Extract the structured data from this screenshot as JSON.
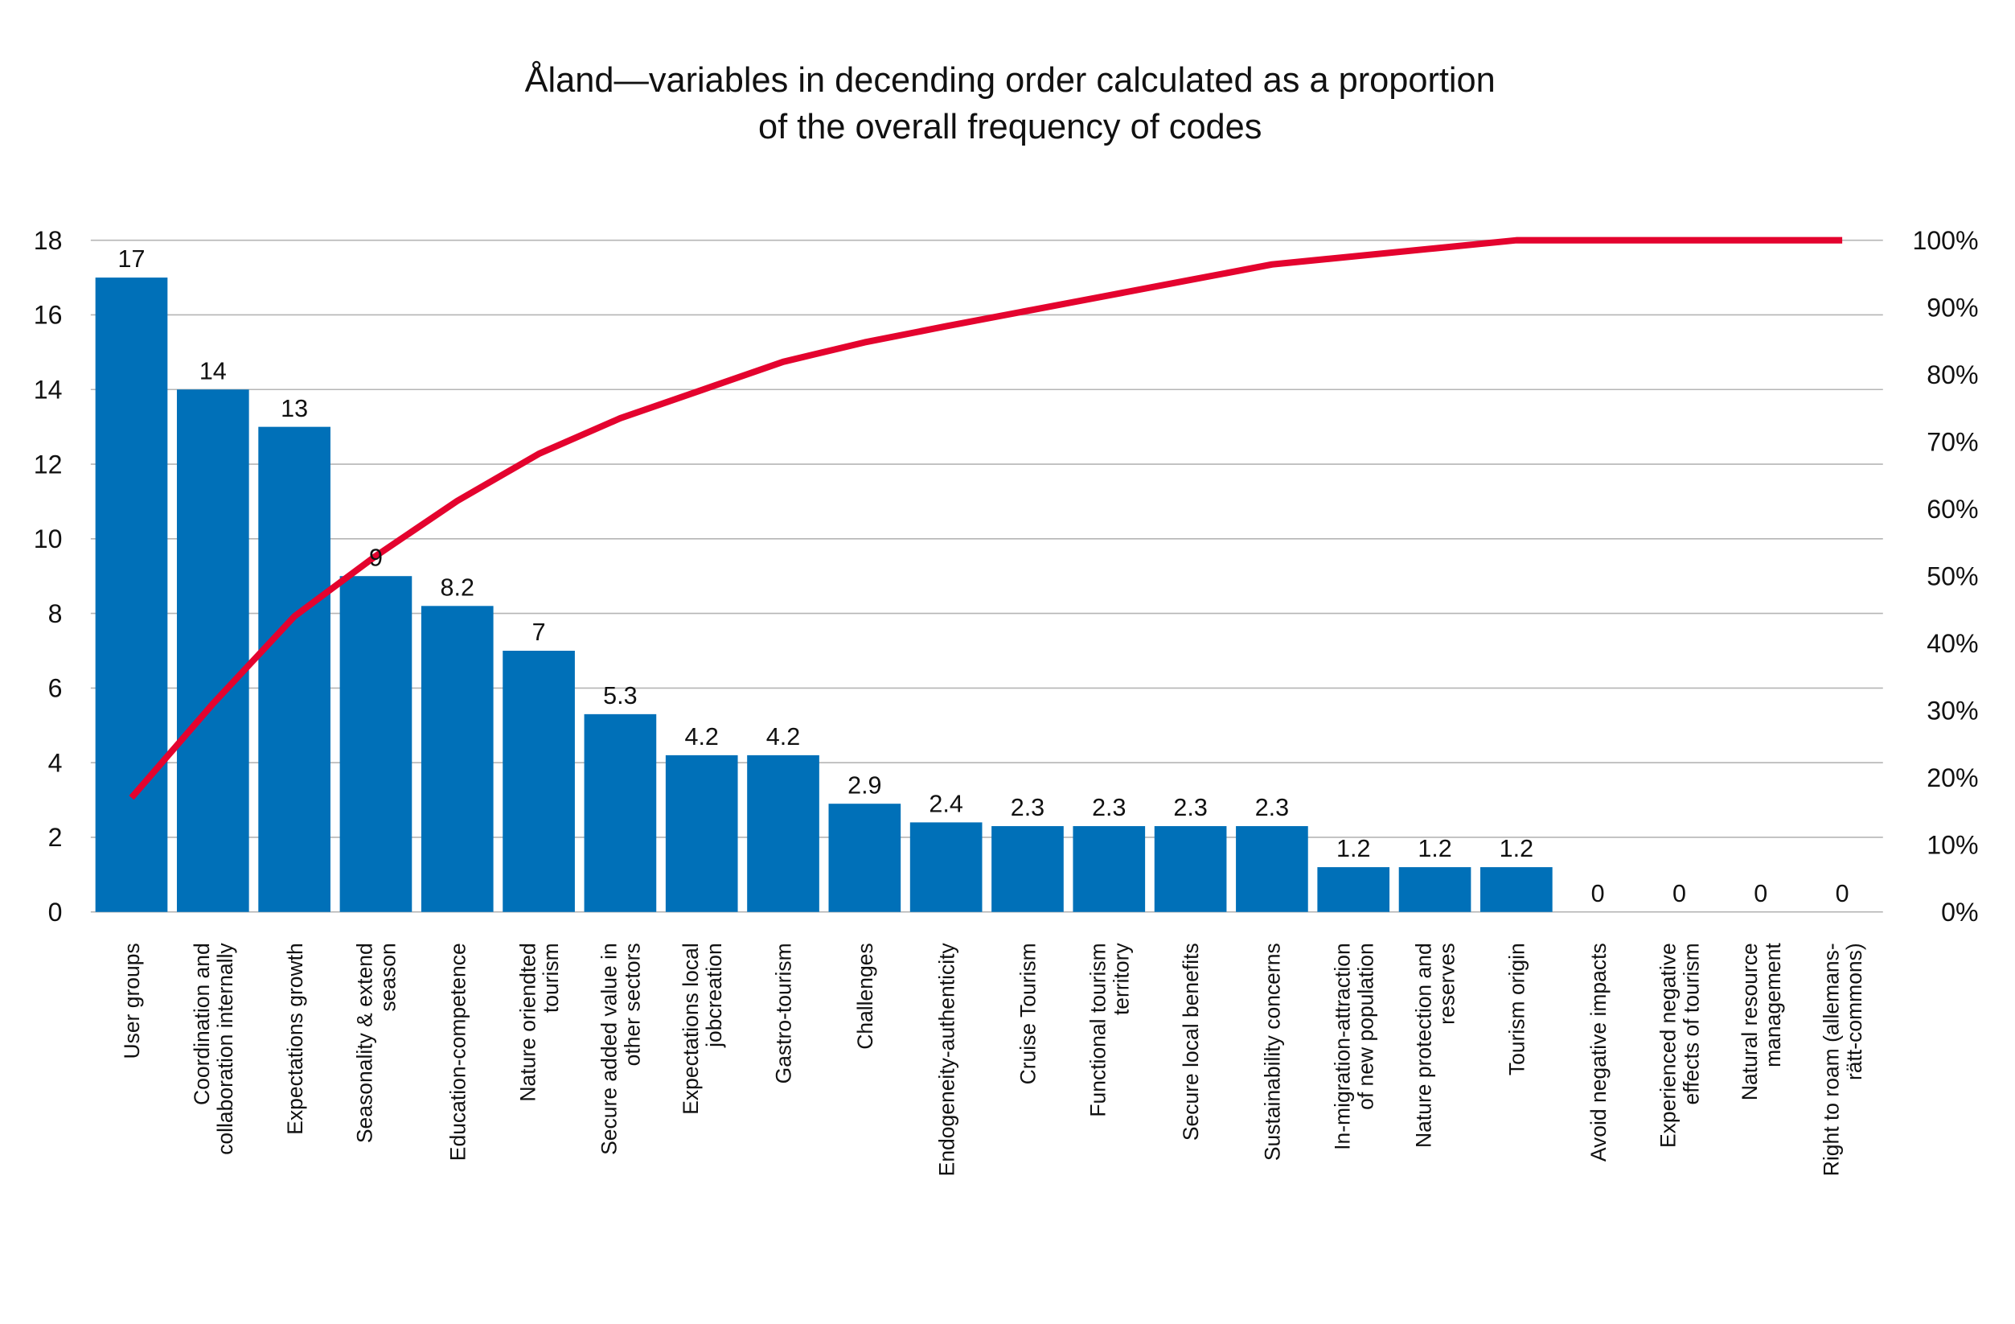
{
  "chart_data": {
    "type": "bar",
    "title": [
      "Åland—variables in decending order calculated as a proportion",
      "of the overall frequency of codes"
    ],
    "categories": [
      [
        "User groups"
      ],
      [
        "Coordination and",
        "collaboration internally"
      ],
      [
        "Expectations growth"
      ],
      [
        "Seasonality & extend",
        "season"
      ],
      [
        "Education-competence"
      ],
      [
        "Nature oriendted",
        "tourism"
      ],
      [
        "Secure added value in",
        "other sectors"
      ],
      [
        "Expectations local",
        "jobcreation"
      ],
      [
        "Gastro-tourism"
      ],
      [
        "Challenges"
      ],
      [
        "Endogeneity-authenticity"
      ],
      [
        "Cruise Tourism"
      ],
      [
        "Functional tourism",
        "territory"
      ],
      [
        "Secure local benefits"
      ],
      [
        "Sustainability concerns"
      ],
      [
        "In-migration-attraction",
        "of new population"
      ],
      [
        "Nature protection and",
        "reserves"
      ],
      [
        "Tourism origin"
      ],
      [
        "Avoid negative impacts"
      ],
      [
        "Experienced negative",
        "effects of tourism"
      ],
      [
        "Natural resource",
        "management"
      ],
      [
        "Right to roam (allemans-",
        "rätt-commons)"
      ]
    ],
    "series": [
      {
        "type": "bar",
        "color": "#0070b8",
        "axis": "left",
        "values": [
          17,
          14,
          13,
          9,
          8.2,
          7,
          5.3,
          4.2,
          4.2,
          2.9,
          2.4,
          2.3,
          2.3,
          2.3,
          2.3,
          1.2,
          1.2,
          1.2,
          0,
          0,
          0,
          0
        ],
        "labels": [
          "17",
          "14",
          "13",
          "9",
          "8.2",
          "7",
          "5.3",
          "4.2",
          "4.2",
          "2.9",
          "2.4",
          "2.3",
          "2.3",
          "2.3",
          "2.3",
          "1.2",
          "1.2",
          "1.2",
          "0",
          "0",
          "0",
          "0"
        ]
      },
      {
        "type": "line",
        "color": "#e4032e",
        "axis": "right",
        "values": [
          17,
          31,
          44,
          53,
          61.2,
          68.2,
          73.5,
          77.7,
          81.9,
          84.8,
          87.2,
          89.5,
          91.8,
          94.1,
          96.4,
          97.6,
          98.8,
          100,
          100,
          100,
          100,
          100
        ]
      }
    ],
    "ylim_left": [
      0,
      18
    ],
    "yticks_left": [
      "0",
      "2",
      "4",
      "6",
      "8",
      "10",
      "12",
      "14",
      "16",
      "18"
    ],
    "ylim_right": [
      0,
      100
    ],
    "yticks_right": [
      "0%",
      "10%",
      "20%",
      "30%",
      "40%",
      "50%",
      "60%",
      "70%",
      "80%",
      "90%",
      "100%"
    ],
    "grid": true,
    "gridline_color": "#b5b5b5",
    "legend": "none"
  }
}
